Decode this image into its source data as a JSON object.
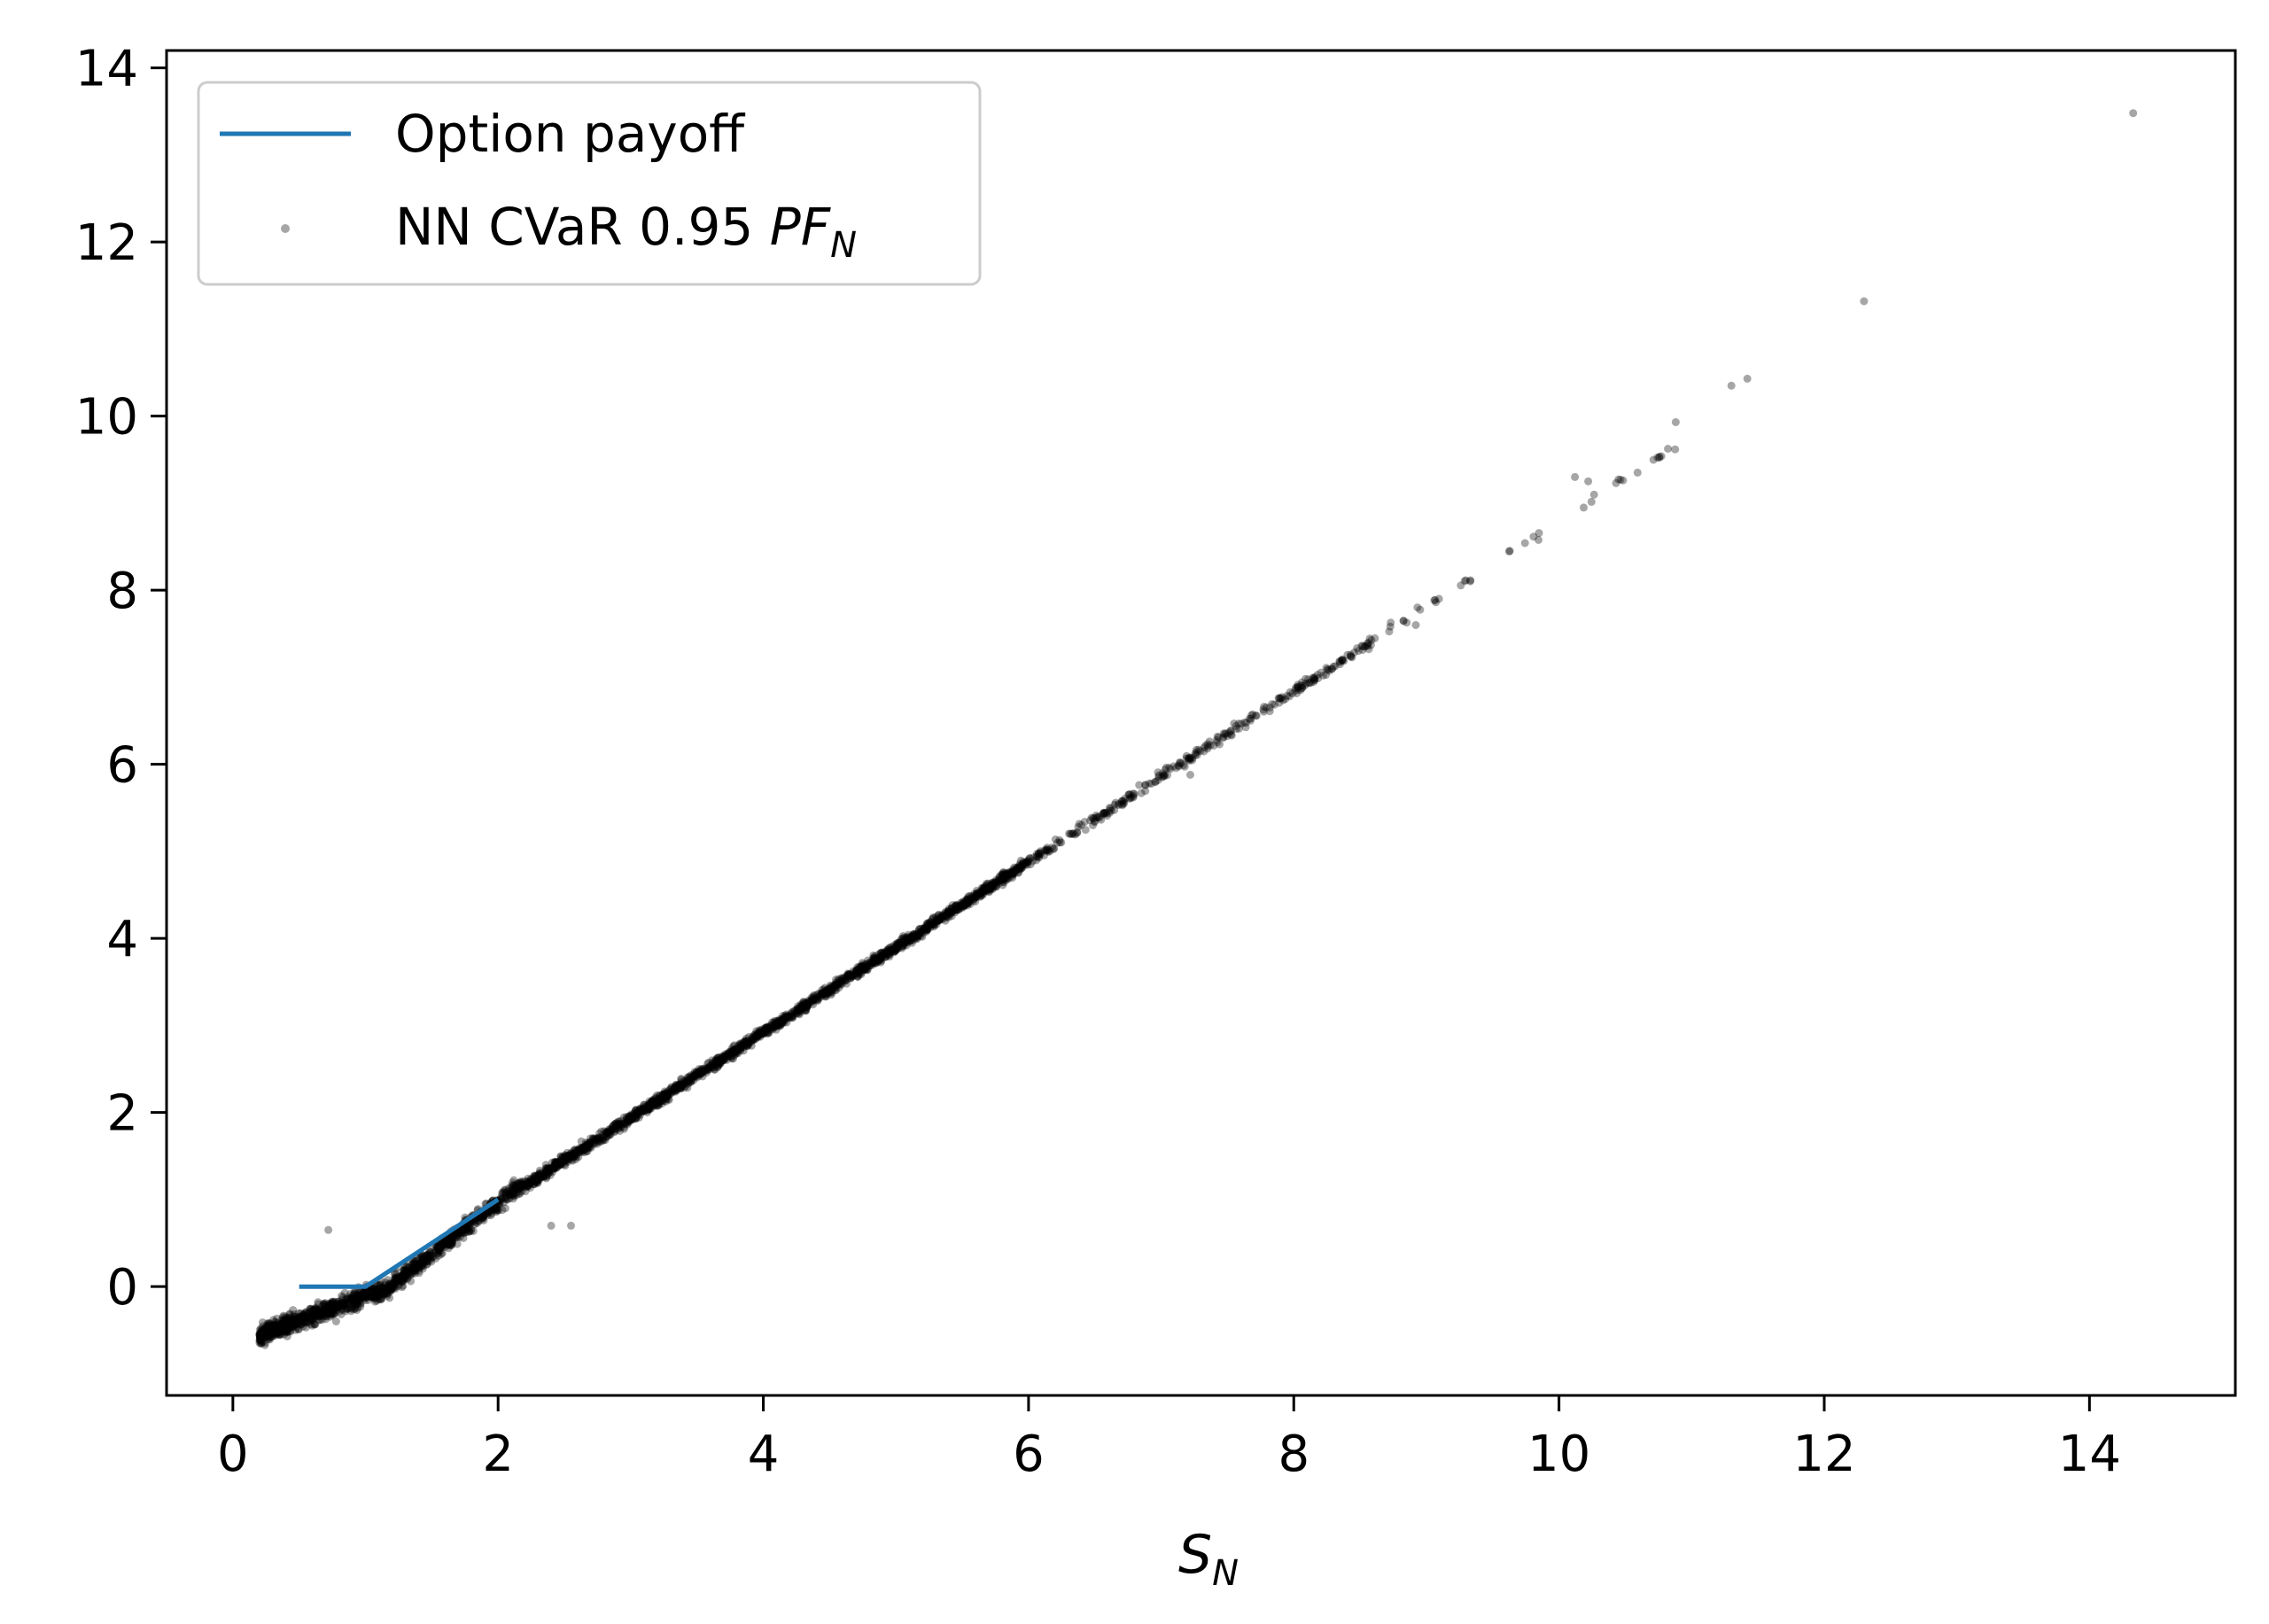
{
  "chart_data": {
    "type": "scatter",
    "title": "",
    "xlabel": {
      "main": "S",
      "sub": "N"
    },
    "ylabel": "",
    "xlim": [
      -0.5,
      15.1
    ],
    "ylim": [
      -1.25,
      14.2
    ],
    "grid": false,
    "legend_position": "top-left",
    "x_ticks": [
      0,
      2,
      4,
      6,
      8,
      10,
      12,
      14
    ],
    "y_ticks": [
      0,
      2,
      4,
      6,
      8,
      10,
      12,
      14
    ],
    "x_tick_labels": [
      "0",
      "2",
      "4",
      "6",
      "8",
      "10",
      "12",
      "14"
    ],
    "y_tick_labels": [
      "0",
      "2",
      "4",
      "6",
      "8",
      "10",
      "12",
      "14"
    ],
    "series": [
      {
        "name": "Option payoff",
        "kind": "line",
        "color": "#1f77b4",
        "x": [
          0.5,
          1.0,
          2.0
        ],
        "y": [
          0.0,
          0.0,
          1.0
        ]
      },
      {
        "name": "NN CVaR 0.95 PF_N",
        "legend_label": {
          "prefix": "NN CVaR 0.95 ",
          "italic_main": "PF",
          "italic_sub": "N"
        },
        "kind": "scatter",
        "color": "#000000",
        "opacity": 0.35,
        "model": "y ≈ x − 1 (band), dense for S_N between 0.2 and 6",
        "outliers": [
          {
            "x": 14.33,
            "y": 13.48
          },
          {
            "x": 12.3,
            "y": 11.32
          },
          {
            "x": 11.42,
            "y": 10.43
          },
          {
            "x": 11.3,
            "y": 10.35
          },
          {
            "x": 10.88,
            "y": 9.93
          },
          {
            "x": 10.22,
            "y": 9.25
          },
          {
            "x": 10.12,
            "y": 9.3
          },
          {
            "x": 8.92,
            "y": 7.6
          },
          {
            "x": 7.22,
            "y": 5.88
          },
          {
            "x": 2.4,
            "y": 0.7
          },
          {
            "x": 2.55,
            "y": 0.7
          },
          {
            "x": 0.72,
            "y": 0.65
          }
        ]
      }
    ]
  }
}
